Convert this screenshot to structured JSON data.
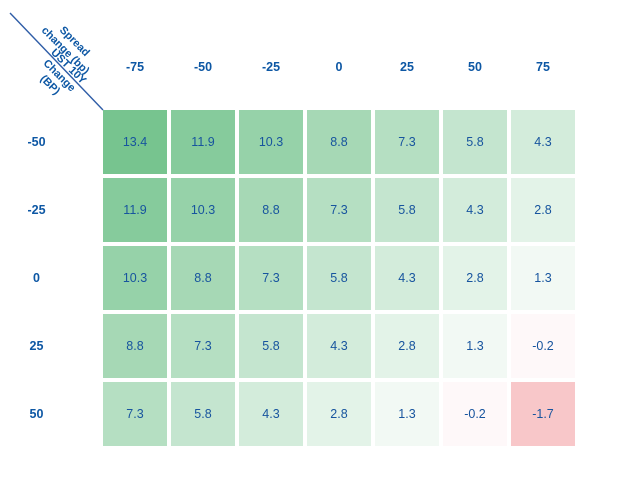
{
  "chart_data": {
    "type": "heatmap",
    "title": "",
    "x_axis_label": "Spread change (bp)",
    "y_axis_label": "UST 10Y Change (BP)",
    "columns": [
      "-75",
      "-50",
      "-25",
      "0",
      "25",
      "50",
      "75"
    ],
    "rows": [
      "-50",
      "-25",
      "0",
      "25",
      "50"
    ],
    "values": [
      [
        13.4,
        11.9,
        10.3,
        8.8,
        7.3,
        5.8,
        4.3
      ],
      [
        11.9,
        10.3,
        8.8,
        7.3,
        5.8,
        4.3,
        2.8
      ],
      [
        10.3,
        8.8,
        7.3,
        5.8,
        4.3,
        2.8,
        1.3
      ],
      [
        8.8,
        7.3,
        5.8,
        4.3,
        2.8,
        1.3,
        -0.2
      ],
      [
        7.3,
        5.8,
        4.3,
        2.8,
        1.3,
        -0.2,
        -1.7
      ]
    ],
    "color_scale": {
      "positive_max_color": "#77c48f",
      "zero_color": "#ffffff",
      "negative_max_color": "#f8c7c9",
      "positive_max": 13.4,
      "negative_min": -1.7
    },
    "legend_position": "none",
    "grid": "white-gaps"
  },
  "corner": {
    "top_label_lines": [
      "Spread",
      "change (bp)"
    ],
    "bottom_label_lines": [
      "UST 10Y",
      "Change",
      "(BP)"
    ]
  },
  "colors": {
    "cell_text": "#17549e",
    "header_text": "#0d57a4",
    "diagonal_line": "#2f5da7"
  }
}
